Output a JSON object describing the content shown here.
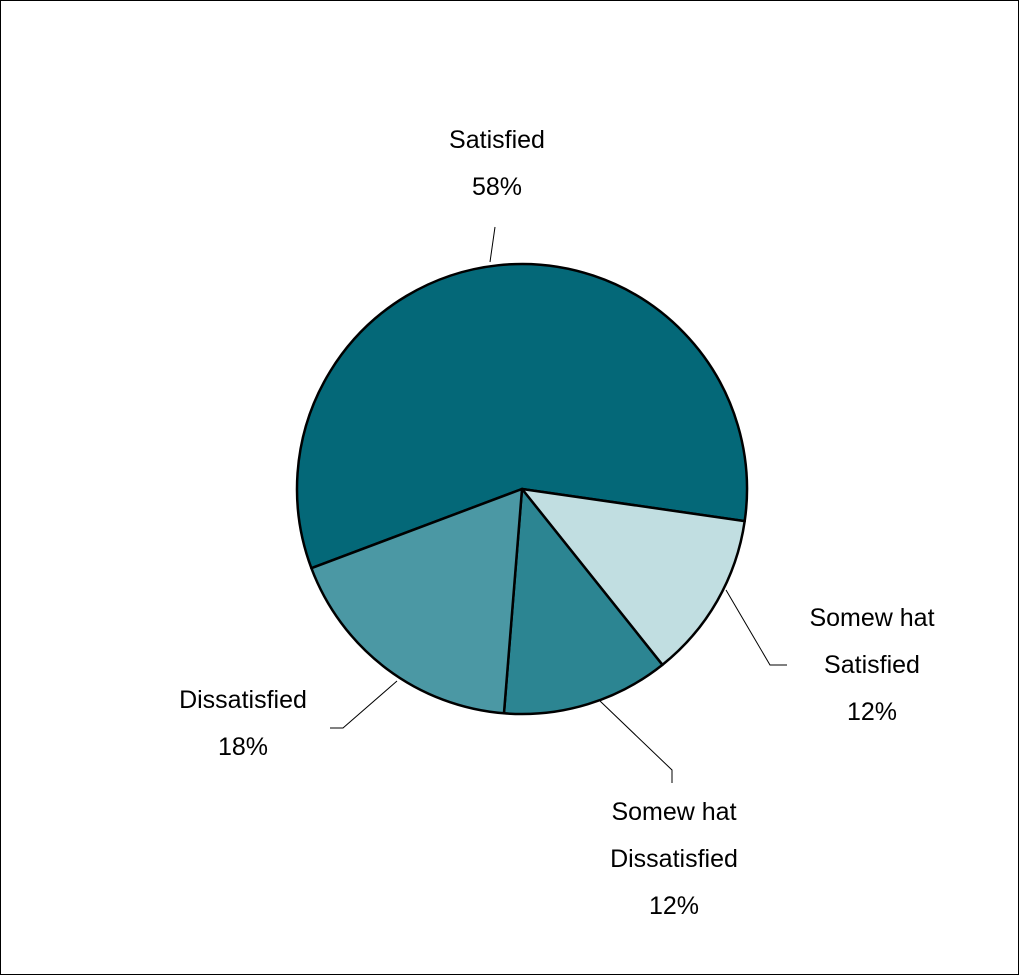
{
  "chart_data": {
    "type": "pie",
    "title": "",
    "slices": [
      {
        "name": "Satisfied",
        "label_lines": [
          "Satisfied"
        ],
        "percent_label": "58%",
        "value": 58,
        "color": "#046878"
      },
      {
        "name": "Somewhat Satisfied",
        "label_lines": [
          "Somew hat",
          "Satisfied"
        ],
        "percent_label": "12%",
        "value": 12,
        "color": "#c1dee1"
      },
      {
        "name": "Somewhat Dissatisfied",
        "label_lines": [
          "Somew hat",
          "Dissatisfied"
        ],
        "percent_label": "12%",
        "value": 12,
        "color": "#2c8592"
      },
      {
        "name": "Dissatisfied",
        "label_lines": [
          "Dissatisfied"
        ],
        "percent_label": "18%",
        "value": 18,
        "color": "#4b98a4"
      }
    ],
    "legend": "none",
    "data_labels": "outside-with-leader-lines"
  }
}
